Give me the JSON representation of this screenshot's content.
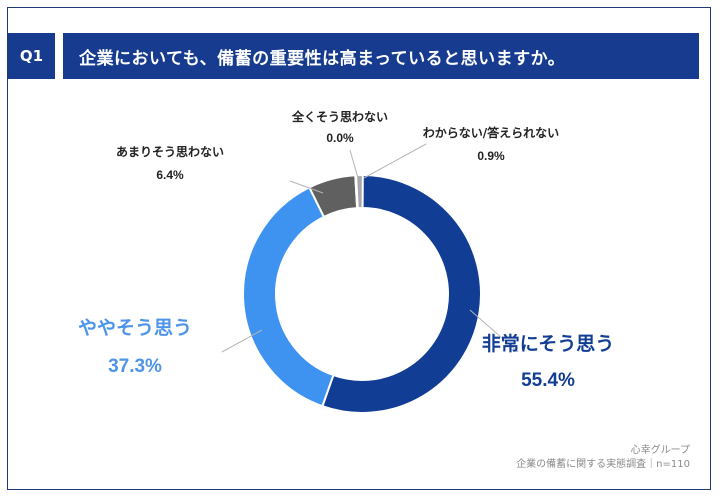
{
  "header": {
    "badge": "Q1",
    "question": "企業においても、備蓄の重要性は高まっていると思いますか。"
  },
  "chart_data": {
    "type": "pie",
    "title": "企業においても、備蓄の重要性は高まっていると思いますか。",
    "categories": [
      "非常にそう思う",
      "ややそう思う",
      "あまりそう思わない",
      "全くそう思わない",
      "わからない/答えられない"
    ],
    "values": [
      55.4,
      37.3,
      6.4,
      0.0,
      0.9
    ],
    "labels": [
      "55.4%",
      "37.3%",
      "6.4%",
      "0.0%",
      "0.9%"
    ],
    "colors": [
      "#123d94",
      "#3f93f0",
      "#606060",
      "#a8a8a8",
      "#a8a8a8"
    ],
    "label_colors": [
      "#123d94",
      "#4e94e8",
      "#222222",
      "#222222",
      "#222222"
    ],
    "hole": "donut"
  },
  "source": {
    "company": "心幸グループ",
    "survey": "企業の備蓄に関する実態調査｜n=110"
  },
  "colors": {
    "brand": "#163b8f",
    "frame": "#1f3a78"
  }
}
